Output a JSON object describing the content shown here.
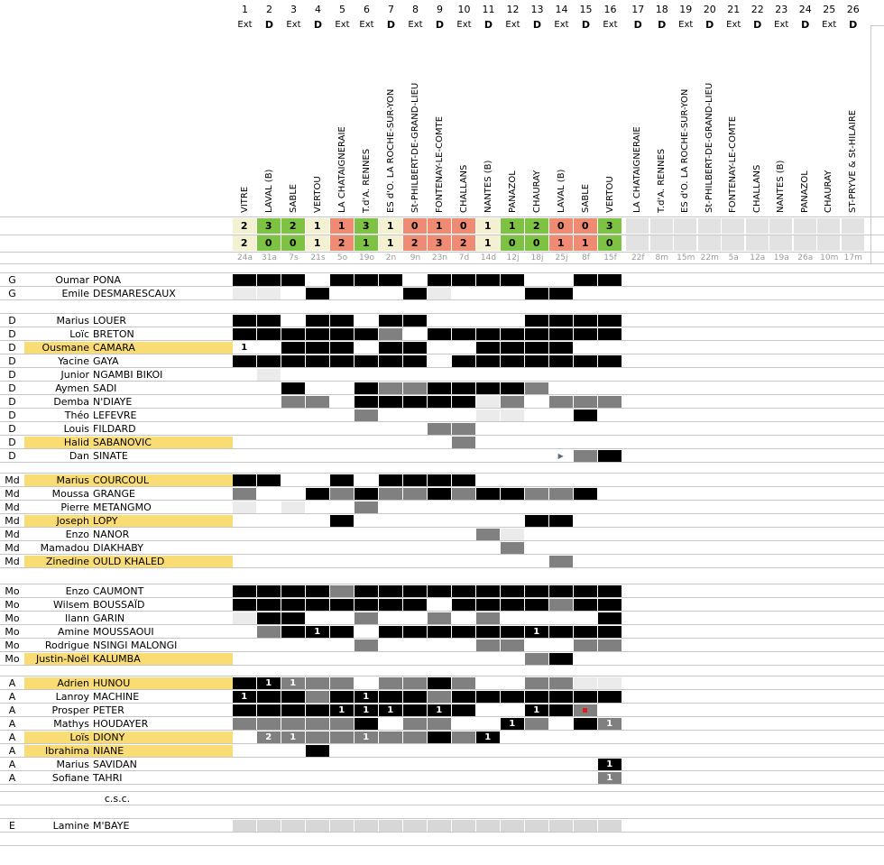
{
  "palette": {
    "win": "#7dc242",
    "draw": "#f4f0d2",
    "loss": "#ef8a73",
    "future": "#e2e2e2",
    "highlight": "#fadc75",
    "cell_black": "#000000",
    "cell_gray": "#808080",
    "cell_light": "#ebebeb",
    "cell_silver": "#d7d7d7",
    "gridline": "#c6c6c6",
    "date_text": "#999999",
    "red_marker": "#e02020",
    "triangle_marker": "#5a6b7a"
  },
  "columns": [
    {
      "num": "1",
      "venue": "Ext",
      "opponent": "VITRE",
      "date": "24a",
      "score_for": "2",
      "score_against": "2",
      "result": "draw"
    },
    {
      "num": "2",
      "venue": "D",
      "opponent": "LAVAL (B)",
      "date": "31a",
      "score_for": "3",
      "score_against": "0",
      "result": "win"
    },
    {
      "num": "3",
      "venue": "Ext",
      "opponent": "SABLE",
      "date": "7s",
      "score_for": "2",
      "score_against": "0",
      "result": "win"
    },
    {
      "num": "4",
      "venue": "D",
      "opponent": "VERTOU",
      "date": "21s",
      "score_for": "1",
      "score_against": "1",
      "result": "draw"
    },
    {
      "num": "5",
      "venue": "Ext",
      "opponent": "LA CHATAIGNERAIE",
      "date": "5o",
      "score_for": "1",
      "score_against": "2",
      "result": "loss"
    },
    {
      "num": "6",
      "venue": "Ext",
      "opponent": "T.d'A. RENNES",
      "date": "19o",
      "score_for": "3",
      "score_against": "1",
      "result": "win"
    },
    {
      "num": "7",
      "venue": "D",
      "opponent": "ES d'O. LA ROCHE-SUR-YON",
      "date": "2n",
      "score_for": "1",
      "score_against": "1",
      "result": "draw"
    },
    {
      "num": "8",
      "venue": "Ext",
      "opponent": "St-PHILBERT-DE-GRAND-LIEU",
      "date": "9n",
      "score_for": "0",
      "score_against": "2",
      "result": "loss"
    },
    {
      "num": "9",
      "venue": "D",
      "opponent": "FONTENAY-LE-COMTE",
      "date": "23n",
      "score_for": "1",
      "score_against": "3",
      "result": "loss"
    },
    {
      "num": "10",
      "venue": "Ext",
      "opponent": "CHALLANS",
      "date": "7d",
      "score_for": "0",
      "score_against": "2",
      "result": "loss"
    },
    {
      "num": "11",
      "venue": "D",
      "opponent": "NANTES (B)",
      "date": "14d",
      "score_for": "1",
      "score_against": "1",
      "result": "draw"
    },
    {
      "num": "12",
      "venue": "Ext",
      "opponent": "PANAZOL",
      "date": "12j",
      "score_for": "1",
      "score_against": "0",
      "result": "win"
    },
    {
      "num": "13",
      "venue": "D",
      "opponent": "CHAURAY",
      "date": "18j",
      "score_for": "2",
      "score_against": "0",
      "result": "win"
    },
    {
      "num": "14",
      "venue": "Ext",
      "opponent": "LAVAL (B)",
      "date": "25j",
      "score_for": "0",
      "score_against": "1",
      "result": "loss"
    },
    {
      "num": "15",
      "venue": "D",
      "opponent": "SABLE",
      "date": "8f",
      "score_for": "0",
      "score_against": "1",
      "result": "loss"
    },
    {
      "num": "16",
      "venue": "Ext",
      "opponent": "VERTOU",
      "date": "15f",
      "score_for": "3",
      "score_against": "0",
      "result": "win"
    },
    {
      "num": "17",
      "venue": "D",
      "opponent": "LA CHATAIGNERAIE",
      "date": "22f",
      "score_for": "",
      "score_against": "",
      "result": "future"
    },
    {
      "num": "18",
      "venue": "D",
      "opponent": "T.d'A. RENNES",
      "date": "8m",
      "score_for": "",
      "score_against": "",
      "result": "future"
    },
    {
      "num": "19",
      "venue": "Ext",
      "opponent": "ES d'O. LA ROCHE-SUR-YON",
      "date": "15m",
      "score_for": "",
      "score_against": "",
      "result": "future"
    },
    {
      "num": "20",
      "venue": "D",
      "opponent": "St-PHILBERT-DE-GRAND-LIEU",
      "date": "22m",
      "score_for": "",
      "score_against": "",
      "result": "future"
    },
    {
      "num": "21",
      "venue": "Ext",
      "opponent": "FONTENAY-LE-COMTE",
      "date": "5a",
      "score_for": "",
      "score_against": "",
      "result": "future"
    },
    {
      "num": "22",
      "venue": "D",
      "opponent": "CHALLANS",
      "date": "12a",
      "score_for": "",
      "score_against": "",
      "result": "future"
    },
    {
      "num": "23",
      "venue": "Ext",
      "opponent": "NANTES (B)",
      "date": "19a",
      "score_for": "",
      "score_against": "",
      "result": "future"
    },
    {
      "num": "24",
      "venue": "D",
      "opponent": "PANAZOL",
      "date": "26a",
      "score_for": "",
      "score_against": "",
      "result": "future"
    },
    {
      "num": "25",
      "venue": "Ext",
      "opponent": "CHAURAY",
      "date": "10m",
      "score_for": "",
      "score_against": "",
      "result": "future"
    },
    {
      "num": "26",
      "venue": "D",
      "opponent": "ST-PRYVE & St-HILAIRE",
      "date": "17m",
      "score_for": "",
      "score_against": "",
      "result": "future"
    }
  ],
  "cell_legend": {
    "B": "played-full-black",
    "G": "substitute-gray",
    "L": "bench-lightgray",
    "S": "squad-silver",
    "B1": "black-1-goal",
    "G1": "gray-1-goal",
    "G2": "gray-2-goals",
    "N1": "white-1-goal",
    "T": "triangle-marker",
    "GR": "gray-red-marker"
  },
  "triangle_glyph": "▶",
  "csc_label": "c.s.c.",
  "sections": [
    {
      "position": "G",
      "players": [
        {
          "first": "Oumar",
          "last": "PONA",
          "highlight": false,
          "cells": {
            "1": "B",
            "2": "B",
            "3": "B",
            "5": "B",
            "6": "B",
            "7": "B",
            "9": "B",
            "10": "B",
            "11": "B",
            "12": "B",
            "15": "B",
            "16": "B"
          }
        },
        {
          "first": "Emile",
          "last": "DESMARESCAUX",
          "highlight": false,
          "cells": {
            "1": "L",
            "2": "L",
            "4": "B",
            "8": "B",
            "9": "L",
            "13": "B",
            "14": "B"
          }
        }
      ]
    },
    {
      "position": "D",
      "players": [
        {
          "first": "Marius",
          "last": "LOUER",
          "highlight": false,
          "cells": {
            "1": "B",
            "2": "B",
            "4": "B",
            "5": "B",
            "7": "B",
            "8": "B",
            "13": "B",
            "14": "B",
            "15": "B",
            "16": "B"
          }
        },
        {
          "first": "Loïc",
          "last": "BRETON",
          "highlight": false,
          "cells": {
            "1": "B",
            "2": "B",
            "3": "B",
            "4": "B",
            "5": "B",
            "6": "B",
            "7": "G",
            "9": "B",
            "10": "B",
            "11": "B",
            "12": "B",
            "13": "B",
            "14": "B",
            "15": "B",
            "16": "B"
          }
        },
        {
          "first": "Ousmane",
          "last": "CAMARA",
          "highlight": true,
          "cells": {
            "1": "N1",
            "3": "B",
            "4": "B",
            "5": "B",
            "7": "B",
            "8": "B",
            "11": "B",
            "12": "B",
            "13": "B",
            "14": "B"
          }
        },
        {
          "first": "Yacine",
          "last": "GAYA",
          "highlight": false,
          "cells": {
            "1": "B",
            "2": "B",
            "3": "B",
            "4": "B",
            "5": "B",
            "6": "B",
            "7": "B",
            "8": "B",
            "10": "B",
            "11": "B",
            "12": "B",
            "13": "B",
            "14": "B",
            "15": "B",
            "16": "B"
          }
        },
        {
          "first": "Junior",
          "last": "NGAMBI BIKOI",
          "highlight": false,
          "cells": {
            "2": "L"
          }
        },
        {
          "first": "Aymen",
          "last": "SADI",
          "highlight": false,
          "cells": {
            "3": "B",
            "6": "B",
            "7": "G",
            "8": "G",
            "9": "B",
            "10": "B",
            "11": "B",
            "12": "B",
            "13": "G"
          }
        },
        {
          "first": "Demba",
          "last": "N'DIAYE",
          "highlight": false,
          "cells": {
            "3": "G",
            "4": "G",
            "6": "B",
            "7": "B",
            "8": "B",
            "9": "B",
            "10": "B",
            "11": "L",
            "12": "G",
            "14": "G",
            "15": "G",
            "16": "G"
          }
        },
        {
          "first": "Théo",
          "last": "LEFEVRE",
          "highlight": false,
          "cells": {
            "6": "G",
            "11": "L",
            "12": "L",
            "15": "B"
          }
        },
        {
          "first": "Louis",
          "last": "FILDARD",
          "highlight": false,
          "cells": {
            "9": "G",
            "10": "G"
          }
        },
        {
          "first": "Halid",
          "last": "SABANOVIC",
          "highlight": true,
          "cells": {
            "10": "G"
          }
        },
        {
          "first": "Dan",
          "last": "SINATE",
          "highlight": false,
          "cells": {
            "14": "T",
            "15": "G",
            "16": "B"
          }
        }
      ]
    },
    {
      "position": "Md",
      "players": [
        {
          "first": "Marius",
          "last": "COURCOUL",
          "highlight": true,
          "cells": {
            "1": "B",
            "2": "B",
            "5": "B",
            "7": "B",
            "8": "B",
            "9": "B",
            "10": "B"
          }
        },
        {
          "first": "Moussa",
          "last": "GRANGE",
          "highlight": false,
          "cells": {
            "1": "G",
            "4": "B",
            "5": "G",
            "6": "B",
            "7": "G",
            "8": "G",
            "9": "B",
            "10": "G",
            "11": "B",
            "12": "B",
            "13": "G",
            "14": "G",
            "15": "B"
          }
        },
        {
          "first": "Pierre",
          "last": "METANGMO",
          "highlight": false,
          "cells": {
            "1": "L",
            "3": "L",
            "6": "G"
          }
        },
        {
          "first": "Joseph",
          "last": "LOPY",
          "highlight": true,
          "cells": {
            "5": "B",
            "13": "B",
            "14": "B"
          }
        },
        {
          "first": "Enzo",
          "last": "NANOR",
          "highlight": false,
          "cells": {
            "11": "G",
            "12": "L"
          }
        },
        {
          "first": "Mamadou",
          "last": "DIAKHABY",
          "highlight": false,
          "cells": {
            "12": "G"
          }
        },
        {
          "first": "Zinedine",
          "last": "OULD KHALED",
          "highlight": true,
          "cells": {
            "14": "G"
          }
        }
      ]
    },
    {
      "position": "Mo",
      "players": [
        {
          "first": "Enzo",
          "last": "CAUMONT",
          "highlight": false,
          "cells": {
            "1": "B",
            "2": "B",
            "3": "B",
            "4": "B",
            "5": "G",
            "6": "B",
            "7": "B",
            "8": "B",
            "9": "B",
            "10": "B",
            "11": "B",
            "12": "B",
            "13": "B",
            "14": "B",
            "15": "B",
            "16": "B"
          }
        },
        {
          "first": "Wilsem",
          "last": "BOUSSAÏD",
          "highlight": false,
          "cells": {
            "1": "B",
            "2": "B",
            "3": "B",
            "4": "B",
            "5": "B",
            "6": "B",
            "7": "B",
            "8": "B",
            "10": "B",
            "11": "B",
            "12": "B",
            "13": "B",
            "14": "G",
            "15": "B",
            "16": "B"
          }
        },
        {
          "first": "Ilann",
          "last": "GARIN",
          "highlight": false,
          "cells": {
            "1": "L",
            "2": "B",
            "3": "B",
            "6": "G",
            "9": "G",
            "11": "G",
            "16": "B"
          }
        },
        {
          "first": "Amine",
          "last": "MOUSSAOUI",
          "highlight": false,
          "cells": {
            "2": "G",
            "3": "B",
            "4": "B1",
            "5": "B",
            "7": "B",
            "8": "B",
            "9": "B",
            "10": "B",
            "11": "B",
            "12": "B",
            "13": "B1",
            "14": "B",
            "15": "B",
            "16": "B"
          }
        },
        {
          "first": "Rodrigue",
          "last": "NSINGI MALONGI",
          "highlight": false,
          "cells": {
            "6": "G",
            "11": "G",
            "12": "G",
            "15": "G",
            "16": "G"
          }
        },
        {
          "first": "Justin-Noël",
          "last": "KALUMBA",
          "highlight": true,
          "cells": {
            "13": "G",
            "14": "B"
          }
        }
      ]
    },
    {
      "position": "A",
      "players": [
        {
          "first": "Adrien",
          "last": "HUNOU",
          "highlight": true,
          "cells": {
            "1": "B",
            "2": "B1",
            "3": "G1",
            "4": "G",
            "5": "G",
            "7": "G",
            "8": "G",
            "9": "B",
            "10": "G",
            "13": "G",
            "14": "G",
            "15": "L",
            "16": "L"
          }
        },
        {
          "first": "Lanroy",
          "last": "MACHINE",
          "highlight": false,
          "cells": {
            "1": "B1",
            "2": "B",
            "3": "B",
            "4": "G",
            "5": "B",
            "6": "B1",
            "7": "B",
            "8": "B",
            "9": "G",
            "10": "B",
            "11": "B",
            "12": "B",
            "13": "B",
            "14": "B",
            "15": "B",
            "16": "B"
          }
        },
        {
          "first": "Prosper",
          "last": "PETER",
          "highlight": false,
          "cells": {
            "1": "B",
            "2": "B",
            "3": "B",
            "4": "B",
            "5": "B1",
            "6": "B1",
            "7": "B1",
            "8": "B",
            "9": "B1",
            "10": "B",
            "13": "B1",
            "14": "B",
            "15": "GR"
          }
        },
        {
          "first": "Mathys",
          "last": "HOUDAYER",
          "highlight": false,
          "cells": {
            "1": "G",
            "2": "G",
            "3": "G",
            "4": "G",
            "5": "G",
            "6": "B",
            "8": "G",
            "9": "G",
            "12": "B1",
            "13": "G",
            "15": "B",
            "16": "G1"
          }
        },
        {
          "first": "Loïs",
          "last": "DIONY",
          "highlight": true,
          "cells": {
            "2": "G2",
            "3": "G1",
            "4": "G",
            "5": "G",
            "6": "G1",
            "7": "G",
            "8": "G",
            "9": "B",
            "10": "G",
            "11": "B1"
          }
        },
        {
          "first": "Ibrahima",
          "last": "NIANE",
          "highlight": true,
          "cells": {
            "4": "B"
          }
        },
        {
          "first": "Marius",
          "last": "SAVIDAN",
          "highlight": false,
          "cells": {
            "16": "B1"
          }
        },
        {
          "first": "Sofiane",
          "last": "TAHRI",
          "highlight": false,
          "cells": {
            "16": "G1"
          }
        }
      ]
    },
    {
      "type": "csc",
      "position": "",
      "players": []
    },
    {
      "position": "E",
      "players": [
        {
          "first": "Lamine",
          "last": "M'BAYE",
          "highlight": false,
          "cells": {
            "1": "S",
            "2": "S",
            "3": "S",
            "4": "S",
            "5": "S",
            "6": "S",
            "7": "S",
            "8": "S",
            "9": "S",
            "10": "S",
            "11": "S",
            "12": "S",
            "13": "S",
            "14": "S",
            "15": "S",
            "16": "S"
          }
        }
      ]
    }
  ]
}
